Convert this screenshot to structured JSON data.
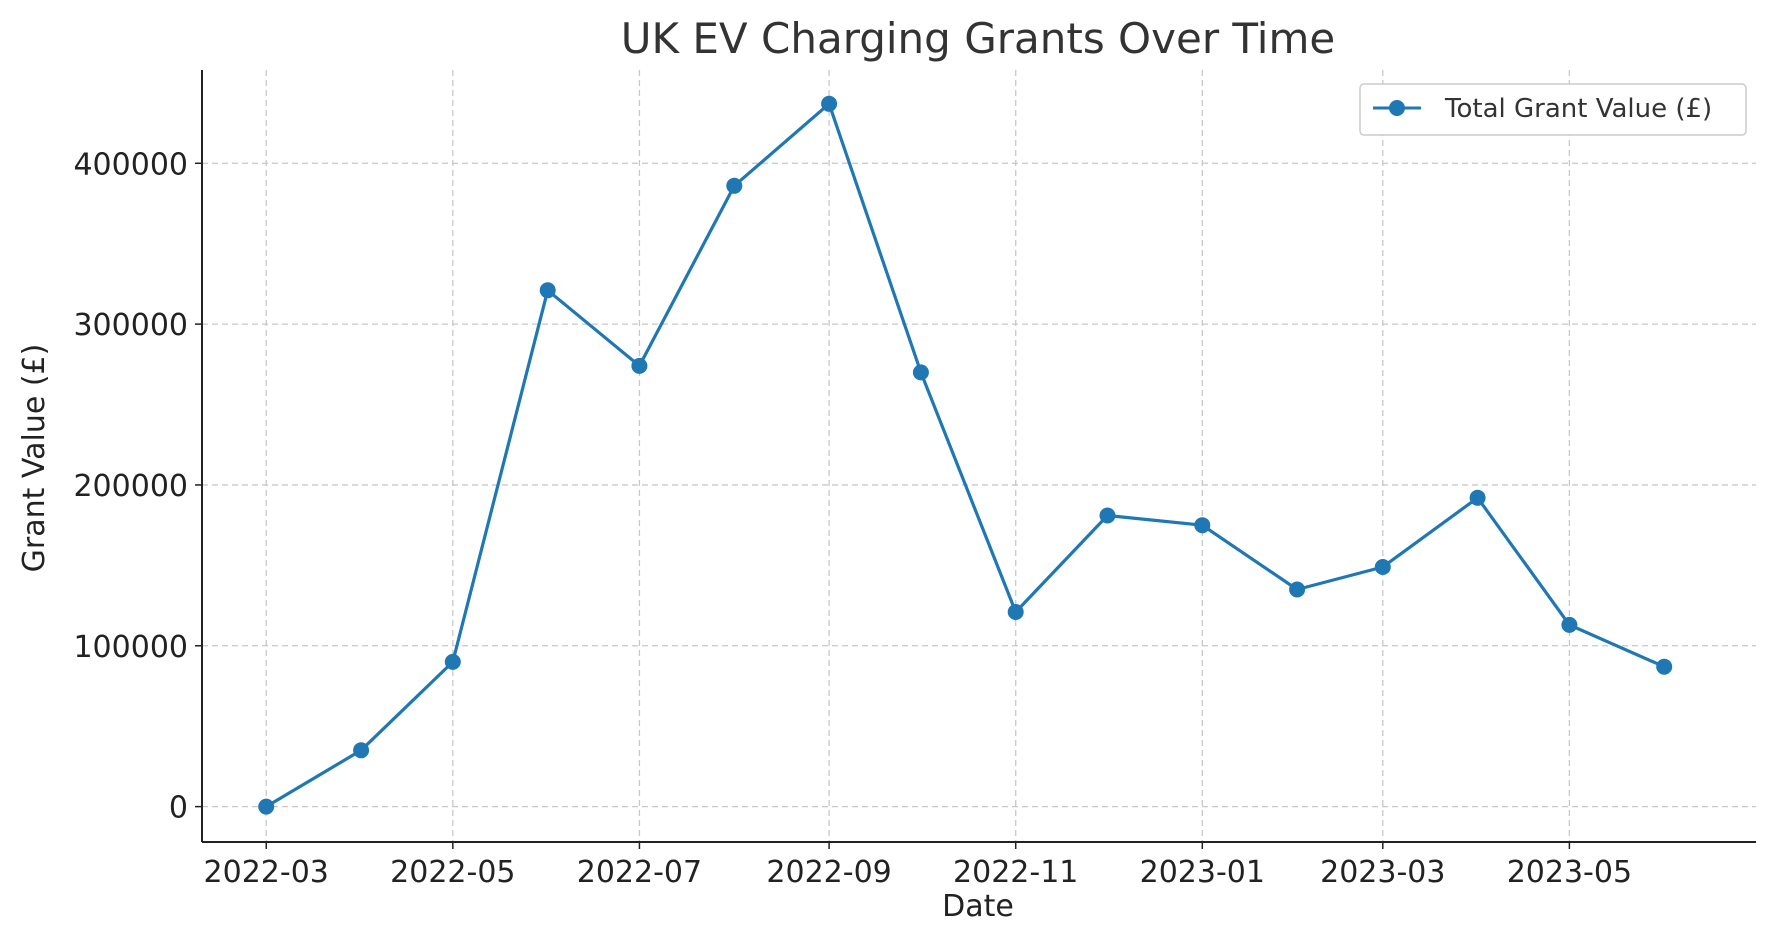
{
  "chart_data": {
    "type": "line",
    "title": "UK EV Charging Grants Over Time",
    "xlabel": "Date",
    "ylabel": "Grant Value (£)",
    "x": [
      "2022-03",
      "2022-04",
      "2022-05",
      "2022-06",
      "2022-07",
      "2022-08",
      "2022-09",
      "2022-10",
      "2022-11",
      "2022-12",
      "2023-01",
      "2023-02",
      "2023-03",
      "2023-04",
      "2023-05",
      "2023-06"
    ],
    "series": [
      {
        "name": "Total Grant Value (£)",
        "color": "#1f77b4",
        "marker": "circle",
        "values": [
          0,
          35000,
          90000,
          321000,
          274000,
          386000,
          437000,
          270000,
          121000,
          181000,
          175000,
          135000,
          149000,
          192000,
          113000,
          87000
        ]
      }
    ],
    "x_ticks": [
      "2022-03",
      "2022-05",
      "2022-07",
      "2022-09",
      "2022-11",
      "2023-01",
      "2023-03",
      "2023-05"
    ],
    "y_ticks": [
      0,
      100000,
      200000,
      300000,
      400000
    ],
    "ylim": [
      -22000,
      458000
    ],
    "xlim": [
      "2022-02-08",
      "2023-07-01"
    ],
    "grid": true,
    "grid_style": "dashed",
    "legend_position": "top-right"
  }
}
